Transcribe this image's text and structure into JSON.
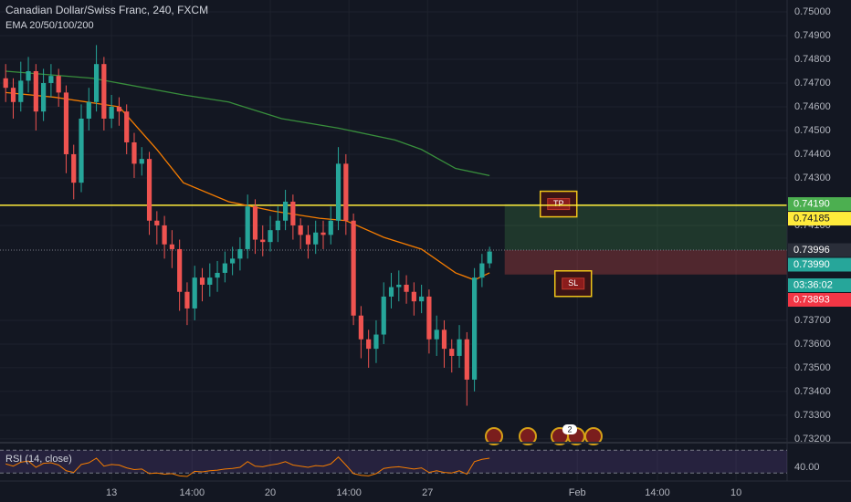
{
  "chart_data": {
    "type": "candlestick",
    "title": "Canadian Dollar/Swiss Franc, 240, FXCM",
    "subtitle": "EMA 20/50/100/200",
    "up_color": "#26a69a",
    "down_color": "#ef5350",
    "x": [
      -28,
      -26,
      -24,
      -22,
      -20,
      -18,
      -16,
      -14,
      -12,
      -10,
      -8,
      -6,
      -4,
      -2,
      0,
      2,
      4,
      6,
      8,
      10,
      12,
      14,
      16,
      18,
      20,
      22,
      24,
      26,
      28,
      30,
      32,
      34,
      36,
      38,
      40,
      42,
      44,
      46,
      48,
      50,
      52,
      54,
      56,
      58,
      60,
      62,
      64,
      66,
      68,
      70,
      72,
      74,
      76,
      78,
      80,
      82,
      84,
      86,
      88,
      90,
      92,
      94,
      96,
      98,
      100
    ],
    "open": [
      0.7472,
      0.7468,
      0.7462,
      0.7471,
      0.7475,
      0.7458,
      0.747,
      0.7473,
      0.7466,
      0.744,
      0.7428,
      0.7455,
      0.7462,
      0.7478,
      0.7455,
      0.746,
      0.7458,
      0.7445,
      0.7436,
      0.7438,
      0.7412,
      0.741,
      0.7402,
      0.74,
      0.7382,
      0.7375,
      0.7388,
      0.7385,
      0.7388,
      0.739,
      0.7394,
      0.7396,
      0.74,
      0.7418,
      0.7404,
      0.7403,
      0.7408,
      0.7412,
      0.742,
      0.741,
      0.7406,
      0.7402,
      0.7407,
      0.7406,
      0.7412,
      0.7436,
      0.7412,
      0.7372,
      0.7362,
      0.7358,
      0.7364,
      0.738,
      0.7384,
      0.7385,
      0.7382,
      0.7378,
      0.738,
      0.7362,
      0.7366,
      0.7358,
      0.7355,
      0.7362,
      0.7345,
      0.7388,
      0.7394
    ],
    "high": [
      0.7478,
      0.7472,
      0.7479,
      0.7481,
      0.7478,
      0.7476,
      0.7478,
      0.7476,
      0.7469,
      0.7444,
      0.7461,
      0.7468,
      0.7486,
      0.7481,
      0.7465,
      0.7464,
      0.7461,
      0.7449,
      0.7443,
      0.7441,
      0.7416,
      0.7414,
      0.7408,
      0.7404,
      0.7386,
      0.7393,
      0.7392,
      0.7394,
      0.7395,
      0.7399,
      0.7401,
      0.7405,
      0.7423,
      0.7421,
      0.741,
      0.7414,
      0.7418,
      0.7425,
      0.7423,
      0.7413,
      0.741,
      0.7412,
      0.7412,
      0.7418,
      0.7443,
      0.744,
      0.7415,
      0.7376,
      0.7366,
      0.737,
      0.7386,
      0.739,
      0.7391,
      0.7389,
      0.7386,
      0.7385,
      0.7383,
      0.7372,
      0.737,
      0.7362,
      0.7368,
      0.7365,
      0.7392,
      0.7398,
      0.7401
    ],
    "low": [
      0.7462,
      0.7455,
      0.7458,
      0.7466,
      0.745,
      0.7454,
      0.7464,
      0.746,
      0.7432,
      0.7421,
      0.7424,
      0.745,
      0.7458,
      0.745,
      0.7451,
      0.7452,
      0.744,
      0.743,
      0.7431,
      0.7406,
      0.7402,
      0.7396,
      0.7392,
      0.7374,
      0.7368,
      0.737,
      0.7378,
      0.738,
      0.7382,
      0.7386,
      0.7389,
      0.7391,
      0.7396,
      0.7398,
      0.7397,
      0.7399,
      0.7403,
      0.7408,
      0.7404,
      0.74,
      0.7396,
      0.7398,
      0.74,
      0.7402,
      0.7408,
      0.7406,
      0.7368,
      0.7354,
      0.735,
      0.7352,
      0.736,
      0.7375,
      0.7378,
      0.7377,
      0.7372,
      0.7373,
      0.7356,
      0.7355,
      0.735,
      0.7348,
      0.735,
      0.7334,
      0.734,
      0.7384,
      0.7392
    ],
    "close": [
      0.7468,
      0.7462,
      0.7471,
      0.7475,
      0.7458,
      0.747,
      0.7473,
      0.7466,
      0.744,
      0.7428,
      0.7455,
      0.7462,
      0.7478,
      0.7455,
      0.746,
      0.7458,
      0.7445,
      0.7436,
      0.7438,
      0.7412,
      0.741,
      0.7402,
      0.74,
      0.7382,
      0.7375,
      0.7388,
      0.7385,
      0.7388,
      0.739,
      0.7394,
      0.7396,
      0.74,
      0.7418,
      0.7404,
      0.7403,
      0.7408,
      0.7412,
      0.742,
      0.741,
      0.7406,
      0.7402,
      0.7407,
      0.7406,
      0.7412,
      0.7436,
      0.7412,
      0.7372,
      0.7362,
      0.7358,
      0.7364,
      0.738,
      0.7384,
      0.7385,
      0.7382,
      0.7378,
      0.738,
      0.7362,
      0.7366,
      0.7358,
      0.7355,
      0.7362,
      0.7345,
      0.7388,
      0.7394,
      0.7399
    ],
    "close_label": "0.73990",
    "countdown": "03:36:02",
    "xlim": [
      -29.5,
      178.7
    ],
    "ylim": [
      0.73192,
      0.7505
    ],
    "xticks": [
      {
        "value": 0,
        "label": "13"
      },
      {
        "value": 21.3,
        "label": "14:00"
      },
      {
        "value": 42,
        "label": "20"
      },
      {
        "value": 62.8,
        "label": "14:00"
      },
      {
        "value": 83.6,
        "label": "27"
      },
      {
        "value": 123.2,
        "label": "Feb"
      },
      {
        "value": 144.4,
        "label": "14:00"
      },
      {
        "value": 165.2,
        "label": "10"
      }
    ],
    "yticks": [
      {
        "value": 0.75,
        "label": "0.75000"
      },
      {
        "value": 0.749,
        "label": "0.74900"
      },
      {
        "value": 0.748,
        "label": "0.74800"
      },
      {
        "value": 0.747,
        "label": "0.74700"
      },
      {
        "value": 0.746,
        "label": "0.74600"
      },
      {
        "value": 0.745,
        "label": "0.74500"
      },
      {
        "value": 0.744,
        "label": "0.74400"
      },
      {
        "value": 0.743,
        "label": "0.74300"
      },
      {
        "value": 0.741,
        "label": "0.74100"
      },
      {
        "value": 0.737,
        "label": "0.73700"
      },
      {
        "value": 0.736,
        "label": "0.73600"
      },
      {
        "value": 0.735,
        "label": "0.73500"
      },
      {
        "value": 0.734,
        "label": "0.73400"
      },
      {
        "value": 0.733,
        "label": "0.73300"
      },
      {
        "value": 0.732,
        "label": "0.73200"
      }
    ],
    "grid": true,
    "ema": [
      {
        "color": "#f57c00",
        "x": [
          -28,
          -15,
          2,
          12,
          19,
          31,
          43,
          55,
          62,
          72,
          82,
          91,
          96,
          100
        ],
        "values": [
          0.7466,
          0.7464,
          0.746,
          0.7442,
          0.7428,
          0.742,
          0.7416,
          0.7413,
          0.7412,
          0.7405,
          0.74,
          0.739,
          0.7387,
          0.739
        ]
      },
      {
        "color": "#388e3c",
        "x": [
          -28,
          -5,
          19,
          31,
          45,
          60,
          75,
          82,
          91,
          100
        ],
        "values": [
          0.7475,
          0.7472,
          0.7465,
          0.7462,
          0.7455,
          0.7451,
          0.7446,
          0.7442,
          0.7434,
          0.7431
        ]
      }
    ],
    "hline": {
      "value": 0.74185,
      "label": "0.74185",
      "color": "#ffeb3b"
    },
    "position": {
      "x_start": 104,
      "entry": 0.73996,
      "entry_label": "0.73996",
      "take_profit": 0.7419,
      "take_profit_label": "0.74190",
      "stop_loss": 0.73893,
      "stop_loss_label": "0.73893",
      "tp_text": "TP",
      "sl_text": "SL"
    },
    "event_badge": "2",
    "rsi": {
      "title": "RSI (14, close)",
      "color": "#f57c00",
      "ylim": [
        16,
        80
      ],
      "bands": [
        30,
        70
      ],
      "yticks": [
        {
          "value": 40,
          "label": "40.00"
        }
      ],
      "values": [
        46,
        42,
        49,
        51,
        40,
        47,
        48,
        44,
        34,
        31,
        45,
        48,
        56,
        42,
        45,
        44,
        39,
        36,
        37,
        29,
        30,
        28,
        29,
        25,
        24,
        33,
        32,
        34,
        35,
        37,
        38,
        40,
        50,
        42,
        41,
        44,
        46,
        50,
        44,
        42,
        40,
        43,
        42,
        46,
        58,
        44,
        29,
        26,
        25,
        29,
        38,
        40,
        41,
        39,
        37,
        39,
        31,
        34,
        31,
        30,
        34,
        28,
        50,
        54,
        56
      ]
    }
  }
}
